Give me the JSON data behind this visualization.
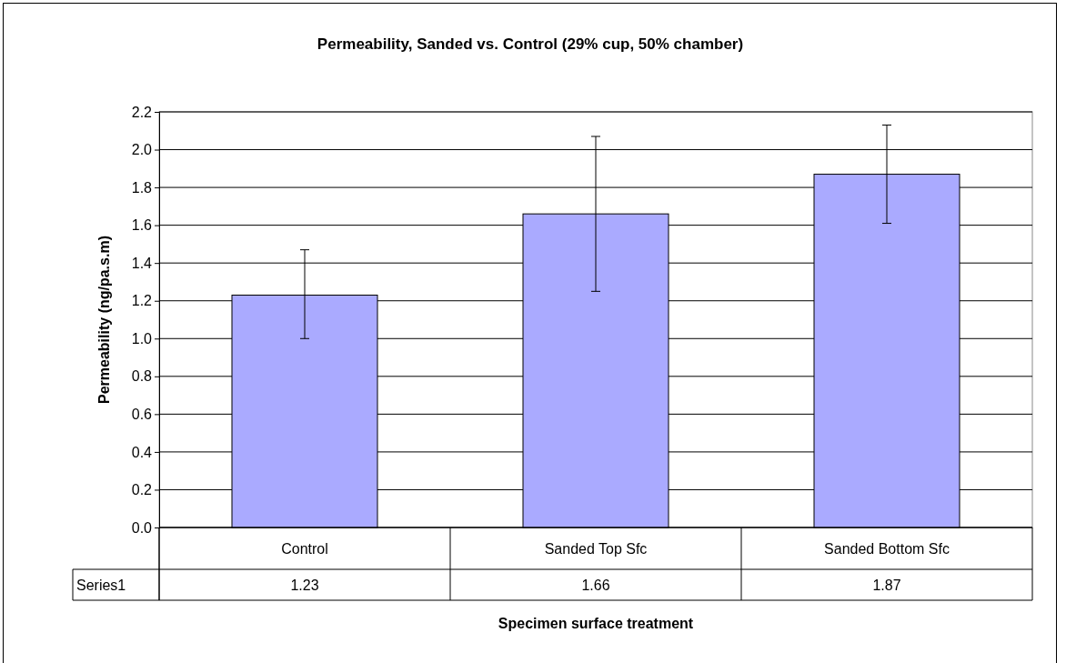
{
  "chart_data": {
    "type": "bar",
    "title": "Permeability, Sanded vs. Control (29% cup, 50% chamber)",
    "xlabel": "Specimen surface treatment",
    "ylabel": "Permeability (ng/pa.s.m)",
    "categories": [
      "Control",
      "Sanded Top Sfc",
      "Sanded Bottom Sfc"
    ],
    "series": [
      {
        "name": "Series1",
        "color": "#aaaaff",
        "values": [
          1.23,
          1.66,
          1.87
        ],
        "errors": [
          [
            1.0,
            1.47
          ],
          [
            1.25,
            2.07
          ],
          [
            1.61,
            2.13
          ]
        ]
      }
    ],
    "ylim": [
      0,
      2.2
    ],
    "yticks": [
      {
        "value": 0,
        "label": "0.0"
      },
      {
        "value": 0.2,
        "label": "0.2"
      },
      {
        "value": 0.4,
        "label": "0.4"
      },
      {
        "value": 0.6,
        "label": "0.6"
      },
      {
        "value": 0.8,
        "label": "0.8"
      },
      {
        "value": 1,
        "label": "1.0"
      },
      {
        "value": 1.2,
        "label": "1.2"
      },
      {
        "value": 1.4,
        "label": "1.4"
      },
      {
        "value": 1.6,
        "label": "1.6"
      },
      {
        "value": 1.8,
        "label": "1.8"
      },
      {
        "value": 2,
        "label": "2.0"
      },
      {
        "value": 2.2,
        "label": "2.2"
      }
    ],
    "grid": "y",
    "data_labels": true
  }
}
